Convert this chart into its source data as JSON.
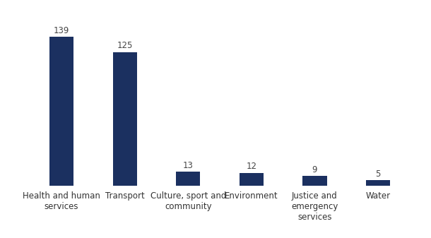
{
  "categories": [
    "Health and human\nservices",
    "Transport",
    "Culture, sport and\ncommunity",
    "Environment",
    "Justice and\nemergency\nservices",
    "Water"
  ],
  "values": [
    139,
    125,
    13,
    12,
    9,
    5
  ],
  "bar_color": "#1b3060",
  "background_color": "#ffffff",
  "ylim": [
    0,
    158
  ],
  "bar_width": 0.38,
  "value_fontsize": 8.5,
  "label_fontsize": 8.5,
  "value_color": "#444444"
}
